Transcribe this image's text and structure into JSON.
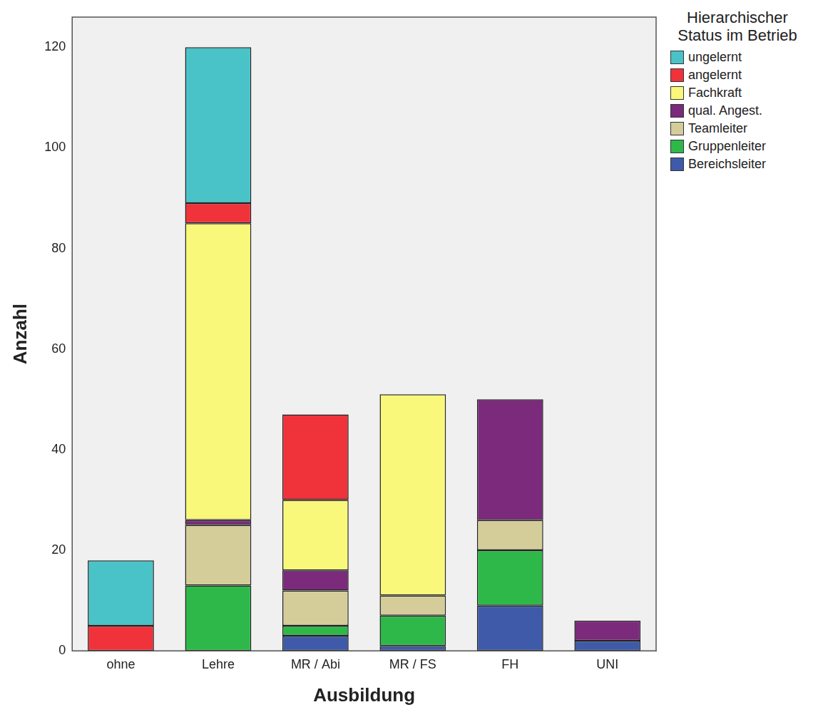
{
  "chart_data": {
    "type": "bar",
    "stacked": true,
    "grid": false,
    "legend": "right",
    "legend_title": "Hierarchischer Status im Betrieb",
    "x_label": "Ausbildung",
    "y_label": "Anzahl",
    "categories": [
      "ohne",
      "Lehre",
      "MR / Abi",
      "MR / FS",
      "FH",
      "UNI"
    ],
    "ylim": [
      0,
      126
    ],
    "yticks": [
      0,
      20,
      40,
      60,
      80,
      100,
      120
    ],
    "series": [
      {
        "name": "Bereichsleiter",
        "color": "#3f5aa8",
        "values": [
          0,
          0,
          3,
          1,
          9,
          2
        ]
      },
      {
        "name": "Gruppenleiter",
        "color": "#2fb84a",
        "values": [
          0,
          13,
          2,
          6,
          11,
          0
        ]
      },
      {
        "name": "Teamleiter",
        "color": "#d4cd9a",
        "values": [
          0,
          12,
          7,
          4,
          6,
          0
        ]
      },
      {
        "name": "qual. Angest.",
        "color": "#7b2a7c",
        "values": [
          0,
          1,
          4,
          0,
          24,
          4
        ]
      },
      {
        "name": "Fachkraft",
        "color": "#f9f87a",
        "values": [
          0,
          59,
          14,
          40,
          0,
          0
        ]
      },
      {
        "name": "angelernt",
        "color": "#f0333b",
        "values": [
          5,
          4,
          17,
          0,
          0,
          0
        ]
      },
      {
        "name": "ungelernt",
        "color": "#4ac3c8",
        "values": [
          13,
          31,
          0,
          0,
          0,
          0
        ]
      }
    ]
  }
}
